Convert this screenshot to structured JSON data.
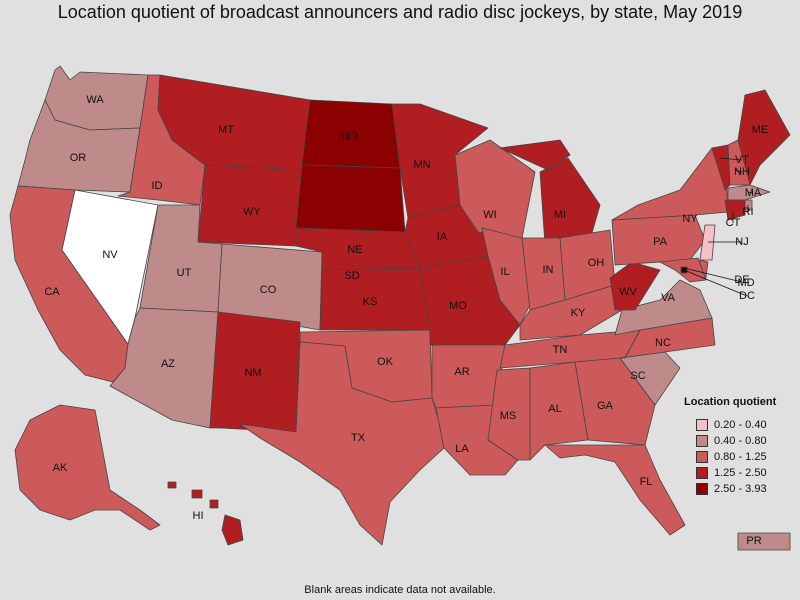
{
  "title": "Location quotient of broadcast announcers and radio disc jockeys, by state, May 2019",
  "footnote": "Blank areas indicate data not available.",
  "legend": {
    "title": "Location quotient",
    "items": [
      {
        "label": "0.20 - 0.40",
        "color": "#f7bfc6"
      },
      {
        "label": "0.40 - 0.80",
        "color": "#bf8a8a"
      },
      {
        "label": "0.80 - 1.25",
        "color": "#cd5a5a"
      },
      {
        "label": "1.25 - 2.50",
        "color": "#b01e22"
      },
      {
        "label": "2.50 - 3.93",
        "color": "#8b0000"
      }
    ]
  },
  "no_data_color": "#ffffff",
  "states": [
    {
      "abbr": "WA",
      "class": "0.40 - 0.80"
    },
    {
      "abbr": "OR",
      "class": "0.40 - 0.80"
    },
    {
      "abbr": "CA",
      "class": "0.80 - 1.25"
    },
    {
      "abbr": "NV",
      "class": null
    },
    {
      "abbr": "ID",
      "class": "0.80 - 1.25"
    },
    {
      "abbr": "MT",
      "class": "1.25 - 2.50"
    },
    {
      "abbr": "WY",
      "class": "1.25 - 2.50"
    },
    {
      "abbr": "UT",
      "class": "0.40 - 0.80"
    },
    {
      "abbr": "CO",
      "class": "0.40 - 0.80"
    },
    {
      "abbr": "AZ",
      "class": "0.40 - 0.80"
    },
    {
      "abbr": "NM",
      "class": "1.25 - 2.50"
    },
    {
      "abbr": "ND",
      "class": "2.50 - 3.93"
    },
    {
      "abbr": "SD",
      "class": "2.50 - 3.93"
    },
    {
      "abbr": "NE",
      "class": "1.25 - 2.50"
    },
    {
      "abbr": "KS",
      "class": "1.25 - 2.50"
    },
    {
      "abbr": "OK",
      "class": "0.80 - 1.25"
    },
    {
      "abbr": "TX",
      "class": "0.80 - 1.25"
    },
    {
      "abbr": "MN",
      "class": "1.25 - 2.50"
    },
    {
      "abbr": "IA",
      "class": "1.25 - 2.50"
    },
    {
      "abbr": "MO",
      "class": "1.25 - 2.50"
    },
    {
      "abbr": "AR",
      "class": "0.80 - 1.25"
    },
    {
      "abbr": "LA",
      "class": "0.80 - 1.25"
    },
    {
      "abbr": "WI",
      "class": "0.80 - 1.25"
    },
    {
      "abbr": "IL",
      "class": "0.80 - 1.25"
    },
    {
      "abbr": "MI",
      "class": "1.25 - 2.50"
    },
    {
      "abbr": "IN",
      "class": "0.80 - 1.25"
    },
    {
      "abbr": "OH",
      "class": "0.80 - 1.25"
    },
    {
      "abbr": "KY",
      "class": "0.80 - 1.25"
    },
    {
      "abbr": "TN",
      "class": "0.80 - 1.25"
    },
    {
      "abbr": "MS",
      "class": "0.80 - 1.25"
    },
    {
      "abbr": "AL",
      "class": "0.80 - 1.25"
    },
    {
      "abbr": "GA",
      "class": "0.80 - 1.25"
    },
    {
      "abbr": "FL",
      "class": "0.80 - 1.25"
    },
    {
      "abbr": "SC",
      "class": "0.40 - 0.80"
    },
    {
      "abbr": "NC",
      "class": "0.80 - 1.25"
    },
    {
      "abbr": "VA",
      "class": "0.40 - 0.80"
    },
    {
      "abbr": "WV",
      "class": "1.25 - 2.50"
    },
    {
      "abbr": "PA",
      "class": "0.80 - 1.25"
    },
    {
      "abbr": "NY",
      "class": "0.80 - 1.25"
    },
    {
      "abbr": "ME",
      "class": "1.25 - 2.50"
    },
    {
      "abbr": "VT",
      "class": "1.25 - 2.50"
    },
    {
      "abbr": "NH",
      "class": "0.80 - 1.25"
    },
    {
      "abbr": "MA",
      "class": "0.40 - 0.80"
    },
    {
      "abbr": "RI",
      "class": "0.40 - 0.80"
    },
    {
      "abbr": "CT",
      "class": "1.25 - 2.50"
    },
    {
      "abbr": "NJ",
      "class": "0.20 - 0.40"
    },
    {
      "abbr": "DE",
      "class": "0.80 - 1.25"
    },
    {
      "abbr": "MD",
      "class": "0.80 - 1.25"
    },
    {
      "abbr": "DC",
      "class": "2.50 - 3.93"
    },
    {
      "abbr": "AK",
      "class": "0.80 - 1.25"
    },
    {
      "abbr": "HI",
      "class": "1.25 - 2.50"
    },
    {
      "abbr": "PR",
      "class": "0.40 - 0.80"
    }
  ]
}
